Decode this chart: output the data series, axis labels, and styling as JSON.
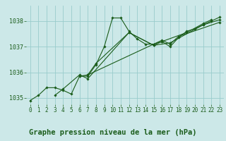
{
  "background_color": "#cce8e8",
  "grid_color": "#99cccc",
  "line_color": "#1a5c1a",
  "marker_color": "#1a5c1a",
  "title": "Graphe pression niveau de la mer (hPa)",
  "ylim": [
    1034.75,
    1038.6
  ],
  "yticks": [
    1035,
    1036,
    1037,
    1038
  ],
  "xlim": [
    -0.5,
    23.5
  ],
  "xticks": [
    0,
    1,
    2,
    3,
    4,
    5,
    6,
    7,
    8,
    9,
    10,
    11,
    12,
    13,
    14,
    15,
    16,
    17,
    18,
    19,
    20,
    21,
    22,
    23
  ],
  "series": [
    [
      1034.9,
      1035.1,
      1035.4,
      1035.4,
      1035.3,
      1035.15,
      1035.85,
      1035.85,
      1036.3,
      1037.0,
      1038.12,
      1038.12,
      1037.6,
      1037.3,
      1037.1,
      1037.1,
      1037.2,
      1037.0,
      1037.35,
      1037.6,
      1037.7,
      1037.85,
      1038.0,
      1038.15
    ],
    [
      null,
      null,
      null,
      1035.1,
      1035.35,
      null,
      1035.9,
      1035.75,
      null,
      null,
      null,
      null,
      1037.55,
      null,
      null,
      1037.05,
      null,
      1037.15,
      null,
      null,
      null,
      1037.85,
      null,
      1038.05
    ],
    [
      null,
      null,
      null,
      null,
      null,
      null,
      1035.85,
      1035.9,
      1036.35,
      null,
      null,
      null,
      1037.55,
      null,
      null,
      1037.05,
      1037.2,
      null,
      null,
      1037.55,
      null,
      1037.9,
      1038.05,
      null
    ],
    [
      null,
      null,
      null,
      null,
      null,
      null,
      null,
      1035.9,
      null,
      null,
      null,
      null,
      null,
      null,
      null,
      null,
      1037.25,
      1037.1,
      1037.4,
      null,
      null,
      null,
      null,
      1037.95
    ]
  ],
  "title_fontsize": 7.5,
  "tick_fontsize": 5.5,
  "label_color": "#1a5c1a"
}
